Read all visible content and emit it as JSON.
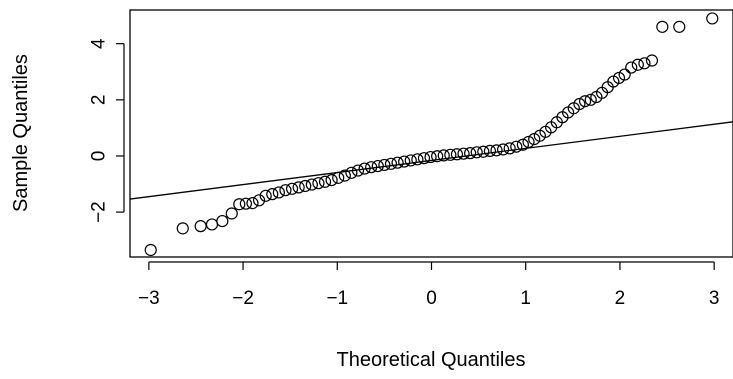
{
  "chart_data": {
    "type": "scatter",
    "title": "",
    "xlabel": "Theoretical Quantiles",
    "ylabel": "Sample Quantiles",
    "xlim": [
      -3.2,
      3.2
    ],
    "ylim": [
      -3.6,
      5.2
    ],
    "x_ticks": [
      -3,
      -2,
      -1,
      0,
      1,
      2,
      3
    ],
    "x_tick_labels": [
      "−3",
      "−2",
      "−1",
      "0",
      "1",
      "2",
      "3"
    ],
    "y_ticks": [
      -2,
      0,
      2,
      4
    ],
    "y_tick_labels": [
      "−2",
      "0",
      "2",
      "4"
    ],
    "grid": false,
    "reference_line": {
      "slope": 0.43,
      "intercept": -0.16
    },
    "series": [
      {
        "marker": "open-circle",
        "points": [
          [
            -2.98,
            -3.35
          ],
          [
            -2.64,
            -2.58
          ],
          [
            -2.45,
            -2.5
          ],
          [
            -2.33,
            -2.44
          ],
          [
            -2.22,
            -2.32
          ],
          [
            -2.12,
            -2.05
          ],
          [
            -2.04,
            -1.72
          ],
          [
            -1.97,
            -1.7
          ],
          [
            -1.9,
            -1.68
          ],
          [
            -1.83,
            -1.58
          ],
          [
            -1.76,
            -1.42
          ],
          [
            -1.69,
            -1.36
          ],
          [
            -1.62,
            -1.3
          ],
          [
            -1.55,
            -1.22
          ],
          [
            -1.48,
            -1.17
          ],
          [
            -1.41,
            -1.12
          ],
          [
            -1.34,
            -1.07
          ],
          [
            -1.27,
            -1.02
          ],
          [
            -1.2,
            -0.97
          ],
          [
            -1.13,
            -0.92
          ],
          [
            -1.06,
            -0.86
          ],
          [
            -0.99,
            -0.78
          ],
          [
            -0.92,
            -0.7
          ],
          [
            -0.85,
            -0.6
          ],
          [
            -0.78,
            -0.52
          ],
          [
            -0.71,
            -0.45
          ],
          [
            -0.64,
            -0.4
          ],
          [
            -0.57,
            -0.36
          ],
          [
            -0.5,
            -0.32
          ],
          [
            -0.43,
            -0.28
          ],
          [
            -0.36,
            -0.24
          ],
          [
            -0.29,
            -0.2
          ],
          [
            -0.22,
            -0.16
          ],
          [
            -0.15,
            -0.12
          ],
          [
            -0.08,
            -0.08
          ],
          [
            -0.01,
            -0.04
          ],
          [
            0.06,
            -0.01
          ],
          [
            0.13,
            0.02
          ],
          [
            0.2,
            0.04
          ],
          [
            0.27,
            0.06
          ],
          [
            0.34,
            0.08
          ],
          [
            0.41,
            0.1
          ],
          [
            0.48,
            0.13
          ],
          [
            0.55,
            0.15
          ],
          [
            0.62,
            0.18
          ],
          [
            0.69,
            0.2
          ],
          [
            0.76,
            0.23
          ],
          [
            0.83,
            0.27
          ],
          [
            0.9,
            0.33
          ],
          [
            0.97,
            0.4
          ],
          [
            1.03,
            0.5
          ],
          [
            1.09,
            0.6
          ],
          [
            1.15,
            0.72
          ],
          [
            1.21,
            0.86
          ],
          [
            1.27,
            1.02
          ],
          [
            1.33,
            1.2
          ],
          [
            1.39,
            1.38
          ],
          [
            1.45,
            1.55
          ],
          [
            1.51,
            1.7
          ],
          [
            1.57,
            1.85
          ],
          [
            1.63,
            1.95
          ],
          [
            1.69,
            2.0
          ],
          [
            1.75,
            2.1
          ],
          [
            1.81,
            2.25
          ],
          [
            1.87,
            2.45
          ],
          [
            1.93,
            2.65
          ],
          [
            1.99,
            2.78
          ],
          [
            2.05,
            2.9
          ],
          [
            2.12,
            3.15
          ],
          [
            2.19,
            3.25
          ],
          [
            2.26,
            3.3
          ],
          [
            2.34,
            3.4
          ],
          [
            2.45,
            4.6
          ],
          [
            2.63,
            4.6
          ],
          [
            2.98,
            4.9
          ]
        ]
      }
    ]
  }
}
